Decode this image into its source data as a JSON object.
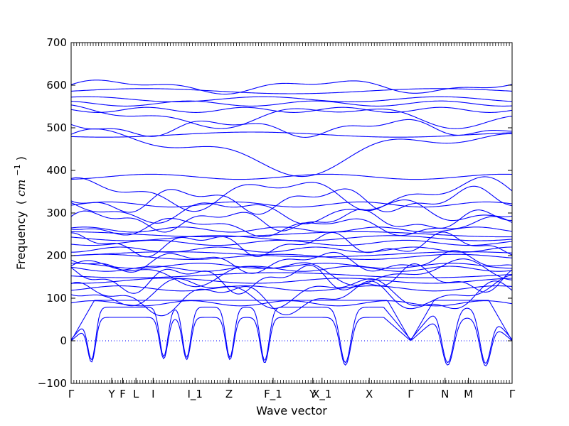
{
  "chart_data": {
    "type": "line",
    "xlabel": "Wave vector",
    "ylabel": "Frequency",
    "ylabel_unit_prefix": "(",
    "ylabel_unit_base": "cm",
    "ylabel_unit_exp": "−1",
    "ylabel_unit_suffix": ")",
    "ylim": [
      -100,
      700
    ],
    "yticks": [
      "−100",
      "0",
      "100",
      "200",
      "300",
      "400",
      "500",
      "600",
      "700"
    ],
    "xtick_labels": [
      "Γ",
      "Y",
      "F",
      "L",
      "I",
      "I_1",
      "Z",
      "F_1",
      "Y",
      "X_1",
      "X",
      "Γ",
      "N",
      "M",
      "Γ"
    ],
    "line_color": "#0000ff",
    "zero_line_color": "#0000ff",
    "grid": false,
    "legend": "none",
    "flat_branches": [
      586,
      567,
      557,
      542,
      484,
      385,
      320,
      261,
      250,
      241,
      230,
      214,
      203,
      197,
      176,
      169,
      154,
      141,
      123,
      88
    ],
    "wavy_branches": [
      {
        "base": 597,
        "amp": 12,
        "freq": 2.1,
        "phase": 0.2
      },
      {
        "base": 527,
        "amp": 20,
        "freq": 1.7,
        "phase": 1.4
      },
      {
        "base": 500,
        "amp": 15,
        "freq": 2.6,
        "phase": 2.2
      },
      {
        "base": 445,
        "amp": 40,
        "freq": 1.3,
        "phase": 0.6
      },
      {
        "base": 345,
        "amp": 28,
        "freq": 2.3,
        "phase": 0.9
      },
      {
        "base": 330,
        "amp": 22,
        "freq": 3.1,
        "phase": 2.7
      },
      {
        "base": 304,
        "amp": 20,
        "freq": 2.7,
        "phase": 1.8
      },
      {
        "base": 282,
        "amp": 18,
        "freq": 3.4,
        "phase": 0.3
      },
      {
        "base": 268,
        "amp": 16,
        "freq": 2.9,
        "phase": 3.1
      },
      {
        "base": 226,
        "amp": 20,
        "freq": 3.6,
        "phase": 1.1
      },
      {
        "base": 185,
        "amp": 18,
        "freq": 3.3,
        "phase": 2.4
      },
      {
        "base": 160,
        "amp": 22,
        "freq": 2.5,
        "phase": 0.4
      },
      {
        "base": 145,
        "amp": 24,
        "freq": 3.8,
        "phase": 1.7
      },
      {
        "base": 115,
        "amp": 26,
        "freq": 2.8,
        "phase": 2.9
      },
      {
        "base": 100,
        "amp": 28,
        "freq": 3.2,
        "phase": 0.8
      }
    ],
    "soft_modes": [
      {
        "x": 0.046,
        "depth": -50,
        "width": 0.012
      },
      {
        "x": 0.21,
        "depth": -42,
        "width": 0.012
      },
      {
        "x": 0.262,
        "depth": -44,
        "width": 0.012
      },
      {
        "x": 0.36,
        "depth": -44,
        "width": 0.012
      },
      {
        "x": 0.439,
        "depth": -52,
        "width": 0.013
      },
      {
        "x": 0.622,
        "depth": -57,
        "width": 0.016
      },
      {
        "x": 0.854,
        "depth": -57,
        "width": 0.018
      },
      {
        "x": 0.94,
        "depth": -59,
        "width": 0.017
      }
    ],
    "xtick_positions": [
      0.0,
      0.092,
      0.117,
      0.147,
      0.186,
      0.281,
      0.358,
      0.458,
      0.548,
      0.569,
      0.676,
      0.77,
      0.848,
      0.901,
      1.0
    ]
  }
}
